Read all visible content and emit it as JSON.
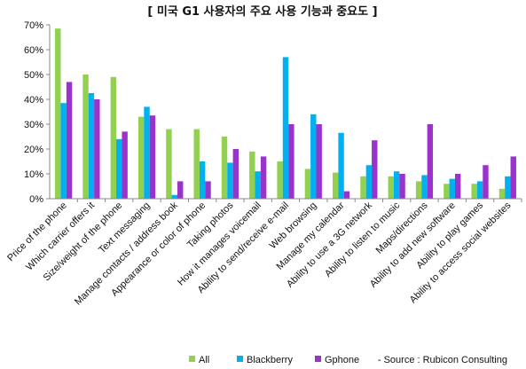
{
  "chart_data": {
    "type": "bar",
    "title": "[ 미국 G1 사용자의 주요 사용 기능과 중요도 ]",
    "ylim": [
      0,
      70
    ],
    "ytick_labels": [
      "0%",
      "10%",
      "20%",
      "30%",
      "40%",
      "50%",
      "60%",
      "70%"
    ],
    "categories": [
      "Price of the phone",
      "Which carrier offers it",
      "Size/weight of the phone",
      "Text messaging",
      "Manage contacts / address book",
      "Appearance or color of phone",
      "Taking photos",
      "How it manages voicemail",
      "Ability to send/receive e-mail",
      "Web browsing",
      "Manage my calendar",
      "Ability to use a 3G network",
      "Ability to listen to music",
      "Maps/directions",
      "Ability to add new software",
      "Ability to play games",
      "Ability to access social websites"
    ],
    "series": [
      {
        "name": "All",
        "color": "#92D050",
        "values": [
          68.5,
          50,
          49,
          33,
          28,
          28,
          25,
          19,
          15,
          12,
          10.5,
          9,
          9,
          7,
          6,
          6,
          4
        ]
      },
      {
        "name": "Blackberry",
        "color": "#00B0F0",
        "values": [
          38.5,
          42.5,
          24,
          37,
          1.5,
          15,
          14.5,
          11,
          57,
          34,
          26.5,
          13.5,
          11,
          9.5,
          8,
          7,
          9
        ]
      },
      {
        "name": "Gphone",
        "color": "#9933CC",
        "values": [
          47,
          40,
          27,
          33.5,
          7,
          7,
          20,
          17,
          30,
          30,
          3,
          23.5,
          10,
          30,
          10,
          13.5,
          17
        ]
      }
    ],
    "grid": false,
    "legend_position": "bottom",
    "source": "- Source : Rubicon Consulting"
  }
}
